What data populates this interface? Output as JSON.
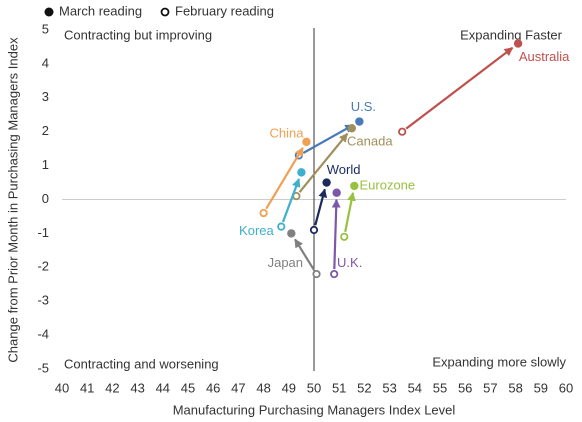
{
  "chart_data": {
    "type": "arrow-scatter",
    "x_label": "Manufacturing Purchasing Managers Index Level",
    "y_label": "Change from Prior Month in Purchasing Managers Index",
    "legend": [
      "March reading",
      "February reading"
    ],
    "annotations": [
      "Contracting but improving",
      "Expanding Faster",
      "Contracting and worsening",
      "Expanding more slowly"
    ],
    "xlim": [
      40,
      60
    ],
    "xticks": [
      40,
      41,
      42,
      43,
      44,
      45,
      46,
      47,
      48,
      49,
      50,
      51,
      52,
      53,
      54,
      55,
      56,
      57,
      58,
      59,
      60
    ],
    "ylim": [
      -5,
      5
    ],
    "yticks": [
      -5,
      -4,
      -3,
      -2,
      -1,
      0,
      1,
      2,
      3,
      4,
      5
    ],
    "vline": 50,
    "hline": 0,
    "series": [
      {
        "name": "Australia",
        "color": "#c0504d",
        "x": [
          53.5,
          58.1
        ],
        "values": [
          2.0,
          4.6
        ]
      },
      {
        "name": "U.S.",
        "color": "#4a7ab8",
        "x": [
          49.4,
          51.8
        ],
        "values": [
          1.3,
          2.3
        ]
      },
      {
        "name": "China",
        "color": "#f0a050",
        "x": [
          48.0,
          49.7
        ],
        "values": [
          -0.4,
          1.7
        ]
      },
      {
        "name": "Canada",
        "color": "#a08f5a",
        "x": [
          49.3,
          51.5
        ],
        "values": [
          0.1,
          2.1
        ]
      },
      {
        "name": "Korea",
        "color": "#3fb0cc",
        "x": [
          48.7,
          49.5
        ],
        "values": [
          -0.8,
          0.8
        ]
      },
      {
        "name": "World",
        "color": "#1c2a5e",
        "x": [
          50.0,
          50.5
        ],
        "values": [
          -0.9,
          0.5
        ]
      },
      {
        "name": "Eurozone",
        "color": "#98c140",
        "x": [
          51.2,
          51.6
        ],
        "values": [
          -1.1,
          0.4
        ]
      },
      {
        "name": "U.K.",
        "color": "#7e58a8",
        "x": [
          50.8,
          50.9
        ],
        "values": [
          -2.2,
          0.2
        ]
      },
      {
        "name": "Japan",
        "color": "#808080",
        "x": [
          50.1,
          49.1
        ],
        "values": [
          -2.2,
          -1.0
        ]
      }
    ]
  }
}
